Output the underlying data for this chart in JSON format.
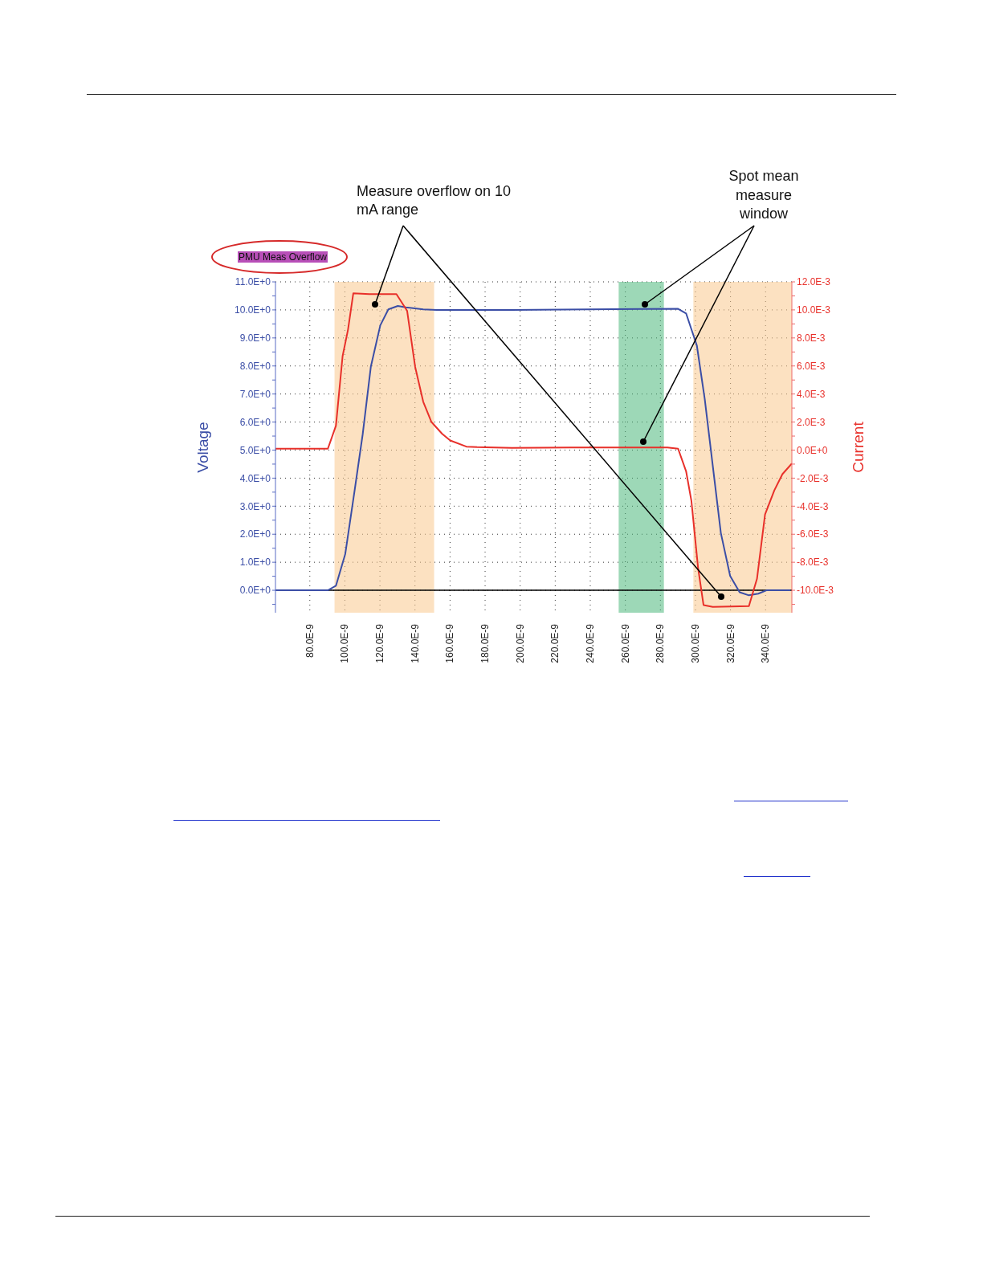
{
  "chart_data": {
    "type": "line",
    "ylabel": "Voltage",
    "y2label": "Current",
    "annotations": [
      "PMU Meas Overflow",
      "Measure overflow on 10 mA range",
      "Spot mean measure window"
    ],
    "xlim": [
      6.04e-08,
      3.55e-07
    ],
    "xticks": [
      {
        "value": 8e-08,
        "label": "80.0E-9"
      },
      {
        "value": 1e-07,
        "label": "100.0E-9"
      },
      {
        "value": 1.2e-07,
        "label": "120.0E-9"
      },
      {
        "value": 1.4e-07,
        "label": "140.0E-9"
      },
      {
        "value": 1.6e-07,
        "label": "160.0E-9"
      },
      {
        "value": 1.8e-07,
        "label": "180.0E-9"
      },
      {
        "value": 2e-07,
        "label": "200.0E-9"
      },
      {
        "value": 2.2e-07,
        "label": "220.0E-9"
      },
      {
        "value": 2.4e-07,
        "label": "240.0E-9"
      },
      {
        "value": 2.6e-07,
        "label": "260.0E-9"
      },
      {
        "value": 2.8e-07,
        "label": "280.0E-9"
      },
      {
        "value": 3e-07,
        "label": "300.0E-9"
      },
      {
        "value": 3.2e-07,
        "label": "320.0E-9"
      },
      {
        "value": 3.4e-07,
        "label": "340.0E-9"
      }
    ],
    "ylim": [
      -0.8,
      11.0
    ],
    "yticks": [
      {
        "value": -0.5,
        "label": null
      },
      {
        "value": 0,
        "label": "0.0E+0"
      },
      {
        "value": 0.5,
        "label": null
      },
      {
        "value": 1,
        "label": "1.0E+0"
      },
      {
        "value": 1.5,
        "label": null
      },
      {
        "value": 2,
        "label": "2.0E+0"
      },
      {
        "value": 2.5,
        "label": null
      },
      {
        "value": 3,
        "label": "3.0E+0"
      },
      {
        "value": 3.5,
        "label": null
      },
      {
        "value": 4,
        "label": "4.0E+0"
      },
      {
        "value": 4.5,
        "label": null
      },
      {
        "value": 5,
        "label": "5.0E+0"
      },
      {
        "value": 5.5,
        "label": null
      },
      {
        "value": 6,
        "label": "6.0E+0"
      },
      {
        "value": 6.5,
        "label": null
      },
      {
        "value": 7,
        "label": "7.0E+0"
      },
      {
        "value": 7.5,
        "label": null
      },
      {
        "value": 8,
        "label": "8.0E+0"
      },
      {
        "value": 8.5,
        "label": null
      },
      {
        "value": 9,
        "label": "9.0E+0"
      },
      {
        "value": 9.5,
        "label": null
      },
      {
        "value": 10,
        "label": "10.0E+0"
      },
      {
        "value": 10.5,
        "label": null
      },
      {
        "value": 11,
        "label": "11.0E+0"
      }
    ],
    "y2lim": [
      -0.0116,
      0.012
    ],
    "y2ticks": [
      {
        "value": -0.011,
        "label": null
      },
      {
        "value": -0.01,
        "label": "-10.0E-3"
      },
      {
        "value": -0.009,
        "label": null
      },
      {
        "value": -0.008,
        "label": "-8.0E-3"
      },
      {
        "value": -0.007,
        "label": null
      },
      {
        "value": -0.006,
        "label": "-6.0E-3"
      },
      {
        "value": -0.005,
        "label": null
      },
      {
        "value": -0.004,
        "label": "-4.0E-3"
      },
      {
        "value": -0.003,
        "label": null
      },
      {
        "value": -0.002,
        "label": "-2.0E-3"
      },
      {
        "value": -0.001,
        "label": null
      },
      {
        "value": 0,
        "label": "0.0E+0"
      },
      {
        "value": 0.001,
        "label": null
      },
      {
        "value": 0.002,
        "label": "2.0E-3"
      },
      {
        "value": 0.003,
        "label": null
      },
      {
        "value": 0.004,
        "label": "4.0E-3"
      },
      {
        "value": 0.005,
        "label": null
      },
      {
        "value": 0.006,
        "label": "6.0E-3"
      },
      {
        "value": 0.007,
        "label": null
      },
      {
        "value": 0.008,
        "label": "8.0E-3"
      },
      {
        "value": 0.009,
        "label": null
      },
      {
        "value": 0.01,
        "label": "10.0E-3"
      },
      {
        "value": 0.011,
        "label": null
      },
      {
        "value": 0.012,
        "label": "12.0E-3"
      }
    ],
    "grid": true,
    "ref_lines": [
      {
        "axis": "y",
        "value": 0,
        "color": "#000000"
      }
    ],
    "bands": [
      {
        "axis": "x",
        "from": 9.41e-08,
        "to": 1.509e-07,
        "color": "#f9c98e"
      },
      {
        "axis": "x",
        "from": 2.988e-07,
        "to": 3.55e-07,
        "color": "#f9c98e"
      },
      {
        "axis": "x",
        "from": 2.562e-07,
        "to": 2.82e-07,
        "color": "#4cb87c"
      }
    ],
    "series": [
      {
        "color": "#3b4ea6",
        "x": [
          6.04e-08,
          9.03e-08,
          9.49e-08,
          1.002e-07,
          1.056e-07,
          1.102e-07,
          1.148e-07,
          1.202e-07,
          1.248e-07,
          1.302e-07,
          1.348e-07,
          1.447e-07,
          1.524e-07,
          1.947e-07,
          2.901e-07,
          2.947e-07,
          3.008e-07,
          3.053e-07,
          3.099e-07,
          3.145e-07,
          3.198e-07,
          3.252e-07,
          3.305e-07,
          3.359e-07,
          3.405e-07,
          3.45e-07,
          3.542e-07
        ],
        "values": [
          0,
          0,
          0.16,
          1.29,
          3.58,
          5.58,
          7.97,
          9.45,
          10.02,
          10.14,
          10.09,
          10.02,
          10.0,
          10.0,
          10.04,
          9.87,
          8.73,
          6.82,
          4.43,
          2.04,
          0.51,
          -0.07,
          -0.18,
          -0.12,
          0,
          0,
          0
        ]
      },
      {
        "color": "#e8302a",
        "axis": "y2",
        "x": [
          6.04e-08,
          9.03e-08,
          9.49e-08,
          9.87e-08,
          1.018e-07,
          1.048e-07,
          1.14e-07,
          1.294e-07,
          1.355e-07,
          1.401e-07,
          1.447e-07,
          1.493e-07,
          1.555e-07,
          1.601e-07,
          1.693e-07,
          1.754e-07,
          1.953e-07,
          2.29e-07,
          2.84e-07,
          2.901e-07,
          2.947e-07,
          2.977e-07,
          3.015e-07,
          3.046e-07,
          3.099e-07,
          3.305e-07,
          3.351e-07,
          3.397e-07,
          3.45e-07,
          3.496e-07,
          3.55e-07
        ],
        "values": [
          0.0001,
          0.0001,
          0.00174,
          0.0067,
          0.0086,
          0.01118,
          0.01113,
          0.01113,
          0.00994,
          0.00593,
          0.00345,
          0.00202,
          0.00116,
          0.00069,
          0.00025,
          0.00021,
          0.00015,
          0.00019,
          0.00019,
          0.0001,
          -0.00153,
          -0.00363,
          -0.00841,
          -0.01105,
          -0.01119,
          -0.01113,
          -0.00918,
          -0.00459,
          -0.00287,
          -0.00172,
          -0.00096
        ]
      }
    ]
  }
}
